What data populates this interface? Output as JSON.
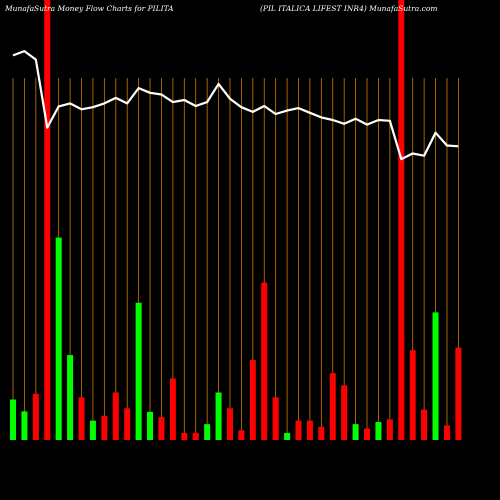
{
  "header": {
    "left": "MunafaSutra  Money Flow  Charts for PILITA",
    "right": "(PIL  ITALICA LIFEST INR4) MunafaSutra.com"
  },
  "colors": {
    "background": "#000000",
    "up": "#00ff00",
    "down": "#ff0000",
    "line": "#ffffff",
    "grid": "#cc7a00"
  },
  "chart_data": {
    "type": "bar",
    "title": "MunafaSutra  Money Flow  Charts for PILITA",
    "subtitle": "(PIL  ITALICA LIFEST INR4) MunafaSutra.com",
    "categories": [],
    "ylim": [
      0,
      100
    ],
    "bars": [
      {
        "value": 9.2,
        "dir": "up"
      },
      {
        "value": 6.5,
        "dir": "up"
      },
      {
        "value": 10.5,
        "dir": "down"
      },
      {
        "value": 100,
        "dir": "down"
      },
      {
        "value": 46.0,
        "dir": "up"
      },
      {
        "value": 19.3,
        "dir": "up"
      },
      {
        "value": 9.7,
        "dir": "down"
      },
      {
        "value": 4.4,
        "dir": "up"
      },
      {
        "value": 5.5,
        "dir": "down"
      },
      {
        "value": 10.8,
        "dir": "down"
      },
      {
        "value": 7.2,
        "dir": "down"
      },
      {
        "value": 31.2,
        "dir": "up"
      },
      {
        "value": 6.4,
        "dir": "up"
      },
      {
        "value": 5.2,
        "dir": "down"
      },
      {
        "value": 14.0,
        "dir": "down"
      },
      {
        "value": 1.6,
        "dir": "down"
      },
      {
        "value": 1.6,
        "dir": "down"
      },
      {
        "value": 3.6,
        "dir": "up"
      },
      {
        "value": 10.8,
        "dir": "up"
      },
      {
        "value": 7.2,
        "dir": "down"
      },
      {
        "value": 2.2,
        "dir": "down"
      },
      {
        "value": 18.2,
        "dir": "down"
      },
      {
        "value": 35.8,
        "dir": "down"
      },
      {
        "value": 9.7,
        "dir": "down"
      },
      {
        "value": 1.6,
        "dir": "up"
      },
      {
        "value": 4.4,
        "dir": "down"
      },
      {
        "value": 4.4,
        "dir": "down"
      },
      {
        "value": 3.0,
        "dir": "down"
      },
      {
        "value": 15.2,
        "dir": "down"
      },
      {
        "value": 12.4,
        "dir": "down"
      },
      {
        "value": 3.6,
        "dir": "up"
      },
      {
        "value": 2.6,
        "dir": "down"
      },
      {
        "value": 4.1,
        "dir": "up"
      },
      {
        "value": 4.7,
        "dir": "down"
      },
      {
        "value": 100,
        "dir": "down"
      },
      {
        "value": 20.4,
        "dir": "down"
      },
      {
        "value": 6.9,
        "dir": "down"
      },
      {
        "value": 29.0,
        "dir": "up"
      },
      {
        "value": 3.3,
        "dir": "down"
      },
      {
        "value": 21.0,
        "dir": "down"
      }
    ],
    "line": [
      90.5,
      91.5,
      89.5,
      73.5,
      78.5,
      79.2,
      77.8,
      78.3,
      79.2,
      80.5,
      79.2,
      82.8,
      81.7,
      81.3,
      79.5,
      80.0,
      78.6,
      79.5,
      83.8,
      80.3,
      78.3,
      77.2,
      78.6,
      76.7,
      77.5,
      78.1,
      77.0,
      75.9,
      75.3,
      74.4,
      75.6,
      74.2,
      75.3,
      75.1,
      66.1,
      67.4,
      66.9,
      72.3,
      69.3,
      69.1
    ]
  }
}
